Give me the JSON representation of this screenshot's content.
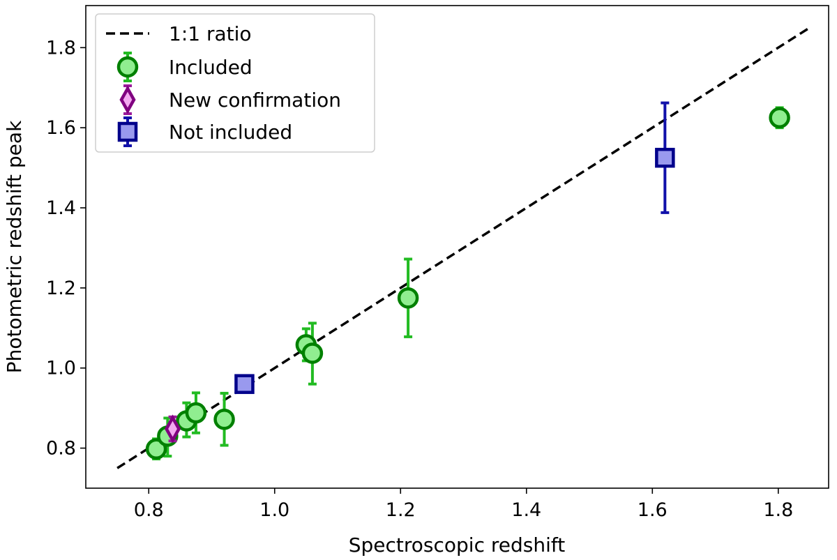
{
  "chart_data": {
    "type": "scatter",
    "title": "",
    "xlabel": "Spectroscopic redshift",
    "ylabel": "Photometric redshift peak",
    "xlim": [
      0.7,
      1.88
    ],
    "ylim": [
      0.7,
      1.905
    ],
    "xticks": [
      0.8,
      1.0,
      1.2,
      1.4,
      1.6,
      1.8
    ],
    "yticks": [
      0.8,
      1.0,
      1.2,
      1.4,
      1.6,
      1.8
    ],
    "xtick_labels": [
      "0.8",
      "1.0",
      "1.2",
      "1.4",
      "1.6",
      "1.8"
    ],
    "ytick_labels": [
      "0.8",
      "1.0",
      "1.2",
      "1.4",
      "1.6",
      "1.8"
    ],
    "grid": false,
    "legend_position": "top-left",
    "reference_line": {
      "name": "1:1 ratio",
      "x": [
        0.75,
        1.85
      ],
      "y": [
        0.75,
        1.85
      ],
      "color": "#000000",
      "style": "dashed"
    },
    "series": [
      {
        "name": "Included",
        "marker": "circle",
        "face_color": "#90EE90",
        "edge_color": "#008000",
        "error_color": "#22BB22",
        "points": [
          {
            "x": 0.812,
            "y": 0.798,
            "err_low": 0.025,
            "err_high": 0.025
          },
          {
            "x": 0.83,
            "y": 0.83,
            "err_low": 0.05,
            "err_high": 0.045
          },
          {
            "x": 0.86,
            "y": 0.868,
            "err_low": 0.04,
            "err_high": 0.045
          },
          {
            "x": 0.875,
            "y": 0.888,
            "err_low": 0.05,
            "err_high": 0.05
          },
          {
            "x": 0.92,
            "y": 0.872,
            "err_low": 0.065,
            "err_high": 0.065
          },
          {
            "x": 1.05,
            "y": 1.058,
            "err_low": 0.04,
            "err_high": 0.04
          },
          {
            "x": 1.06,
            "y": 1.037,
            "err_low": 0.077,
            "err_high": 0.075
          },
          {
            "x": 1.212,
            "y": 1.175,
            "err_low": 0.097,
            "err_high": 0.097
          },
          {
            "x": 1.802,
            "y": 1.625,
            "err_low": 0.025,
            "err_high": 0.025
          }
        ]
      },
      {
        "name": "New confirmation",
        "marker": "diamond",
        "face_color": "#F3A8F0",
        "edge_color": "#800080",
        "error_color": "#9B1B9B",
        "points": [
          {
            "x": 0.838,
            "y": 0.848,
            "err_low": 0.03,
            "err_high": 0.03
          }
        ]
      },
      {
        "name": "Not included",
        "marker": "square",
        "face_color": "#9999EE",
        "edge_color": "#00008B",
        "error_color": "#1111AA",
        "points": [
          {
            "x": 0.952,
            "y": 0.96,
            "err_low": 0.015,
            "err_high": 0.015
          },
          {
            "x": 1.62,
            "y": 1.525,
            "err_low": 0.137,
            "err_high": 0.137
          }
        ]
      }
    ]
  }
}
